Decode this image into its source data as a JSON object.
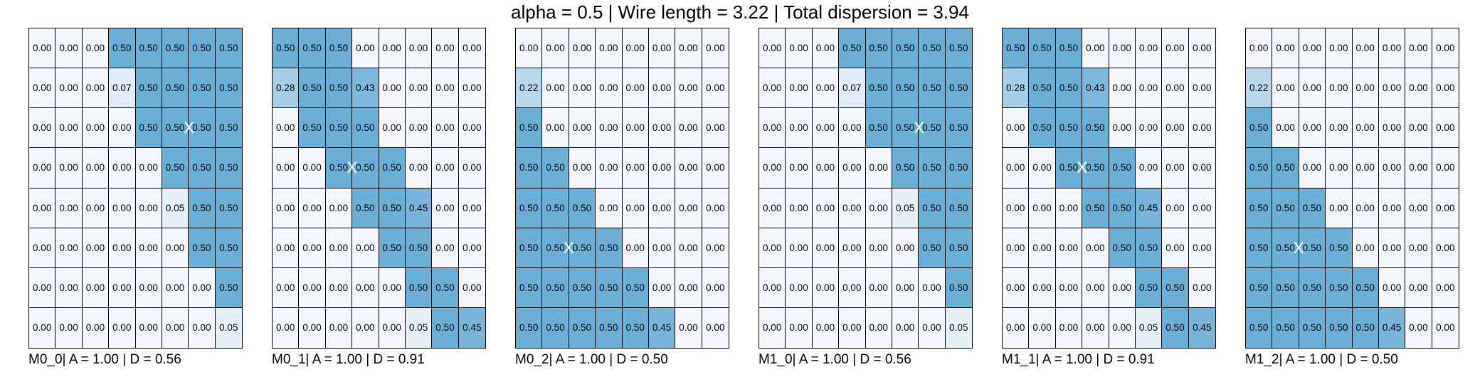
{
  "title": "alpha = 0.5 | Wire length = 3.22 | Total dispersion = 3.94",
  "chart_data": {
    "type": "heatmap",
    "colors": {
      "low": "#f3f7fd",
      "high": "#6baed6",
      "mid": "#a5c9e5",
      "marker": "#ffffff"
    },
    "color_range": [
      0.0,
      0.5
    ],
    "panels": [
      {
        "label": "M0_0| A = 1.00 | D = 0.56",
        "marker": {
          "row": 2,
          "col": 6,
          "symbol": "X"
        },
        "values": [
          [
            "0.00",
            "0.00",
            "0.00",
            "0.50",
            "0.50",
            "0.50",
            "0.50",
            "0.50"
          ],
          [
            "0.00",
            "0.00",
            "0.00",
            "0.07",
            "0.50",
            "0.50",
            "0.50",
            "0.50"
          ],
          [
            "0.00",
            "0.00",
            "0.00",
            "0.00",
            "0.50",
            "0.50",
            "0.50",
            "0.50"
          ],
          [
            "0.00",
            "0.00",
            "0.00",
            "0.00",
            "0.00",
            "0.50",
            "0.50",
            "0.50"
          ],
          [
            "0.00",
            "0.00",
            "0.00",
            "0.00",
            "0.00",
            "0.05",
            "0.50",
            "0.50"
          ],
          [
            "0.00",
            "0.00",
            "0.00",
            "0.00",
            "0.00",
            "0.00",
            "0.50",
            "0.50"
          ],
          [
            "0.00",
            "0.00",
            "0.00",
            "0.00",
            "0.00",
            "0.00",
            "0.00",
            "0.50"
          ],
          [
            "0.00",
            "0.00",
            "0.00",
            "0.00",
            "0.00",
            "0.00",
            "0.00",
            "0.05"
          ]
        ]
      },
      {
        "label": "M0_1| A = 1.00 | D = 0.91",
        "marker": {
          "row": 3,
          "col": 3,
          "symbol": "X"
        },
        "values": [
          [
            "0.50",
            "0.50",
            "0.50",
            "0.00",
            "0.00",
            "0.00",
            "0.00",
            "0.00"
          ],
          [
            "0.28",
            "0.50",
            "0.50",
            "0.43",
            "0.00",
            "0.00",
            "0.00",
            "0.00"
          ],
          [
            "0.00",
            "0.50",
            "0.50",
            "0.50",
            "0.00",
            "0.00",
            "0.00",
            "0.00"
          ],
          [
            "0.00",
            "0.00",
            "0.50",
            "0.50",
            "0.50",
            "0.00",
            "0.00",
            "0.00"
          ],
          [
            "0.00",
            "0.00",
            "0.00",
            "0.50",
            "0.50",
            "0.45",
            "0.00",
            "0.00"
          ],
          [
            "0.00",
            "0.00",
            "0.00",
            "0.00",
            "0.50",
            "0.50",
            "0.00",
            "0.00"
          ],
          [
            "0.00",
            "0.00",
            "0.00",
            "0.00",
            "0.00",
            "0.50",
            "0.50",
            "0.00"
          ],
          [
            "0.00",
            "0.00",
            "0.00",
            "0.00",
            "0.00",
            "0.05",
            "0.50",
            "0.45"
          ]
        ]
      },
      {
        "label": "M0_2| A = 1.00 | D = 0.50",
        "marker": {
          "row": 5,
          "col": 2,
          "symbol": "X"
        },
        "values": [
          [
            "0.00",
            "0.00",
            "0.00",
            "0.00",
            "0.00",
            "0.00",
            "0.00",
            "0.00"
          ],
          [
            "0.22",
            "0.00",
            "0.00",
            "0.00",
            "0.00",
            "0.00",
            "0.00",
            "0.00"
          ],
          [
            "0.50",
            "0.00",
            "0.00",
            "0.00",
            "0.00",
            "0.00",
            "0.00",
            "0.00"
          ],
          [
            "0.50",
            "0.50",
            "0.00",
            "0.00",
            "0.00",
            "0.00",
            "0.00",
            "0.00"
          ],
          [
            "0.50",
            "0.50",
            "0.50",
            "0.00",
            "0.00",
            "0.00",
            "0.00",
            "0.00"
          ],
          [
            "0.50",
            "0.50",
            "0.50",
            "0.50",
            "0.00",
            "0.00",
            "0.00",
            "0.00"
          ],
          [
            "0.50",
            "0.50",
            "0.50",
            "0.50",
            "0.50",
            "0.00",
            "0.00",
            "0.00"
          ],
          [
            "0.50",
            "0.50",
            "0.50",
            "0.50",
            "0.50",
            "0.45",
            "0.00",
            "0.00"
          ]
        ]
      },
      {
        "label": "M1_0| A = 1.00 | D = 0.56",
        "marker": {
          "row": 2,
          "col": 6,
          "symbol": "X"
        },
        "values": [
          [
            "0.00",
            "0.00",
            "0.00",
            "0.50",
            "0.50",
            "0.50",
            "0.50",
            "0.50"
          ],
          [
            "0.00",
            "0.00",
            "0.00",
            "0.07",
            "0.50",
            "0.50",
            "0.50",
            "0.50"
          ],
          [
            "0.00",
            "0.00",
            "0.00",
            "0.00",
            "0.50",
            "0.50",
            "0.50",
            "0.50"
          ],
          [
            "0.00",
            "0.00",
            "0.00",
            "0.00",
            "0.00",
            "0.50",
            "0.50",
            "0.50"
          ],
          [
            "0.00",
            "0.00",
            "0.00",
            "0.00",
            "0.00",
            "0.05",
            "0.50",
            "0.50"
          ],
          [
            "0.00",
            "0.00",
            "0.00",
            "0.00",
            "0.00",
            "0.00",
            "0.50",
            "0.50"
          ],
          [
            "0.00",
            "0.00",
            "0.00",
            "0.00",
            "0.00",
            "0.00",
            "0.00",
            "0.50"
          ],
          [
            "0.00",
            "0.00",
            "0.00",
            "0.00",
            "0.00",
            "0.00",
            "0.00",
            "0.05"
          ]
        ]
      },
      {
        "label": "M1_1| A = 1.00 | D = 0.91",
        "marker": {
          "row": 3,
          "col": 3,
          "symbol": "X"
        },
        "values": [
          [
            "0.50",
            "0.50",
            "0.50",
            "0.00",
            "0.00",
            "0.00",
            "0.00",
            "0.00"
          ],
          [
            "0.28",
            "0.50",
            "0.50",
            "0.43",
            "0.00",
            "0.00",
            "0.00",
            "0.00"
          ],
          [
            "0.00",
            "0.50",
            "0.50",
            "0.50",
            "0.00",
            "0.00",
            "0.00",
            "0.00"
          ],
          [
            "0.00",
            "0.00",
            "0.50",
            "0.50",
            "0.50",
            "0.00",
            "0.00",
            "0.00"
          ],
          [
            "0.00",
            "0.00",
            "0.00",
            "0.50",
            "0.50",
            "0.45",
            "0.00",
            "0.00"
          ],
          [
            "0.00",
            "0.00",
            "0.00",
            "0.00",
            "0.50",
            "0.50",
            "0.00",
            "0.00"
          ],
          [
            "0.00",
            "0.00",
            "0.00",
            "0.00",
            "0.00",
            "0.50",
            "0.50",
            "0.00"
          ],
          [
            "0.00",
            "0.00",
            "0.00",
            "0.00",
            "0.00",
            "0.05",
            "0.50",
            "0.45"
          ]
        ]
      },
      {
        "label": "M1_2| A = 1.00 | D = 0.50",
        "marker": {
          "row": 5,
          "col": 2,
          "symbol": "X"
        },
        "values": [
          [
            "0.00",
            "0.00",
            "0.00",
            "0.00",
            "0.00",
            "0.00",
            "0.00",
            "0.00"
          ],
          [
            "0.22",
            "0.00",
            "0.00",
            "0.00",
            "0.00",
            "0.00",
            "0.00",
            "0.00"
          ],
          [
            "0.50",
            "0.00",
            "0.00",
            "0.00",
            "0.00",
            "0.00",
            "0.00",
            "0.00"
          ],
          [
            "0.50",
            "0.50",
            "0.00",
            "0.00",
            "0.00",
            "0.00",
            "0.00",
            "0.00"
          ],
          [
            "0.50",
            "0.50",
            "0.50",
            "0.00",
            "0.00",
            "0.00",
            "0.00",
            "0.00"
          ],
          [
            "0.50",
            "0.50",
            "0.50",
            "0.50",
            "0.00",
            "0.00",
            "0.00",
            "0.00"
          ],
          [
            "0.50",
            "0.50",
            "0.50",
            "0.50",
            "0.50",
            "0.00",
            "0.00",
            "0.00"
          ],
          [
            "0.50",
            "0.50",
            "0.50",
            "0.50",
            "0.50",
            "0.45",
            "0.00",
            "0.00"
          ]
        ]
      }
    ]
  }
}
